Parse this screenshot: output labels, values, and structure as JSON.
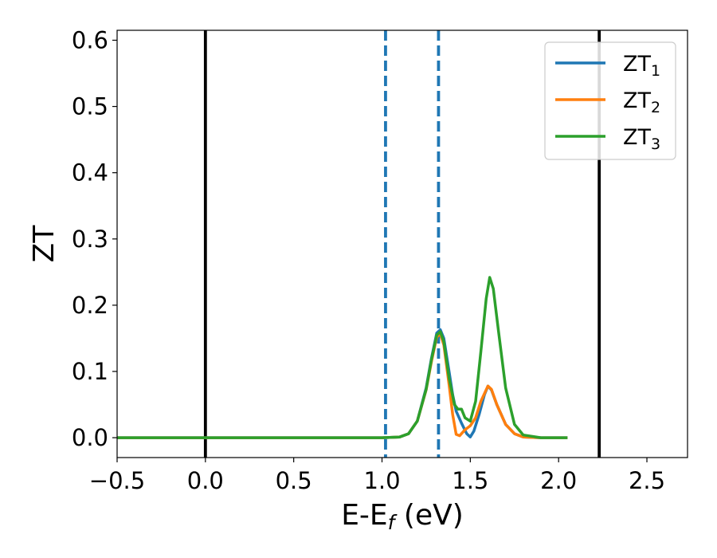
{
  "chart_data": {
    "type": "line",
    "xlabel": "E-E",
    "xlabel_sub": "f",
    "xlabel_suffix": " (eV)",
    "ylabel": "ZT",
    "xlim": [
      -0.5,
      2.73
    ],
    "ylim": [
      -0.03,
      0.615
    ],
    "xticks": [
      -0.5,
      0.0,
      0.5,
      1.0,
      1.5,
      2.0,
      2.5
    ],
    "xtick_labels": [
      "−0.5",
      "0.0",
      "0.5",
      "1.0",
      "1.5",
      "2.0",
      "2.5"
    ],
    "yticks": [
      0.0,
      0.1,
      0.2,
      0.3,
      0.4,
      0.5,
      0.6
    ],
    "ytick_labels": [
      "0.0",
      "0.1",
      "0.2",
      "0.3",
      "0.4",
      "0.5",
      "0.6"
    ],
    "grid": false,
    "legend_position": "top-right",
    "vertical_lines": [
      {
        "x": 0.0,
        "color": "#000000",
        "style": "solid"
      },
      {
        "x": 2.23,
        "color": "#000000",
        "style": "solid"
      },
      {
        "x": 1.02,
        "color": "#1f77b4",
        "style": "dashed"
      },
      {
        "x": 1.32,
        "color": "#1f77b4",
        "style": "dashed"
      }
    ],
    "series": [
      {
        "name": "ZT",
        "name_sub": "1",
        "color": "#1f77b4",
        "points": [
          [
            -0.5,
            0
          ],
          [
            1.0,
            0
          ],
          [
            1.1,
            0.001
          ],
          [
            1.15,
            0.006
          ],
          [
            1.2,
            0.025
          ],
          [
            1.25,
            0.075
          ],
          [
            1.28,
            0.12
          ],
          [
            1.31,
            0.158
          ],
          [
            1.33,
            0.163
          ],
          [
            1.35,
            0.15
          ],
          [
            1.38,
            0.1
          ],
          [
            1.4,
            0.065
          ],
          [
            1.42,
            0.04
          ],
          [
            1.45,
            0.022
          ],
          [
            1.48,
            0.006
          ],
          [
            1.5,
            0.001
          ],
          [
            1.52,
            0.01
          ],
          [
            1.55,
            0.035
          ],
          [
            1.58,
            0.065
          ],
          [
            1.6,
            0.078
          ],
          [
            1.62,
            0.072
          ],
          [
            1.65,
            0.05
          ],
          [
            1.7,
            0.02
          ],
          [
            1.75,
            0.006
          ],
          [
            1.8,
            0.001
          ],
          [
            1.9,
            0
          ],
          [
            2.05,
            0
          ]
        ]
      },
      {
        "name": "ZT",
        "name_sub": "2",
        "color": "#ff7f0e",
        "points": [
          [
            -0.5,
            0
          ],
          [
            1.0,
            0
          ],
          [
            1.1,
            0.001
          ],
          [
            1.15,
            0.006
          ],
          [
            1.2,
            0.025
          ],
          [
            1.25,
            0.072
          ],
          [
            1.28,
            0.115
          ],
          [
            1.31,
            0.152
          ],
          [
            1.33,
            0.157
          ],
          [
            1.35,
            0.14
          ],
          [
            1.38,
            0.08
          ],
          [
            1.4,
            0.035
          ],
          [
            1.42,
            0.005
          ],
          [
            1.44,
            0.003
          ],
          [
            1.47,
            0.012
          ],
          [
            1.5,
            0.018
          ],
          [
            1.53,
            0.03
          ],
          [
            1.56,
            0.055
          ],
          [
            1.6,
            0.078
          ],
          [
            1.62,
            0.073
          ],
          [
            1.65,
            0.05
          ],
          [
            1.7,
            0.02
          ],
          [
            1.75,
            0.006
          ],
          [
            1.8,
            0.001
          ],
          [
            1.9,
            0
          ],
          [
            2.05,
            0
          ]
        ]
      },
      {
        "name": "ZT",
        "name_sub": "3",
        "color": "#2ca02c",
        "points": [
          [
            -0.5,
            0
          ],
          [
            1.0,
            0
          ],
          [
            1.1,
            0.001
          ],
          [
            1.15,
            0.006
          ],
          [
            1.2,
            0.025
          ],
          [
            1.25,
            0.073
          ],
          [
            1.28,
            0.118
          ],
          [
            1.31,
            0.155
          ],
          [
            1.33,
            0.16
          ],
          [
            1.35,
            0.145
          ],
          [
            1.38,
            0.09
          ],
          [
            1.41,
            0.05
          ],
          [
            1.43,
            0.043
          ],
          [
            1.45,
            0.043
          ],
          [
            1.47,
            0.03
          ],
          [
            1.5,
            0.025
          ],
          [
            1.53,
            0.055
          ],
          [
            1.56,
            0.13
          ],
          [
            1.59,
            0.21
          ],
          [
            1.61,
            0.242
          ],
          [
            1.63,
            0.225
          ],
          [
            1.66,
            0.16
          ],
          [
            1.7,
            0.075
          ],
          [
            1.75,
            0.02
          ],
          [
            1.8,
            0.004
          ],
          [
            1.9,
            0
          ],
          [
            2.05,
            0
          ]
        ]
      }
    ]
  }
}
